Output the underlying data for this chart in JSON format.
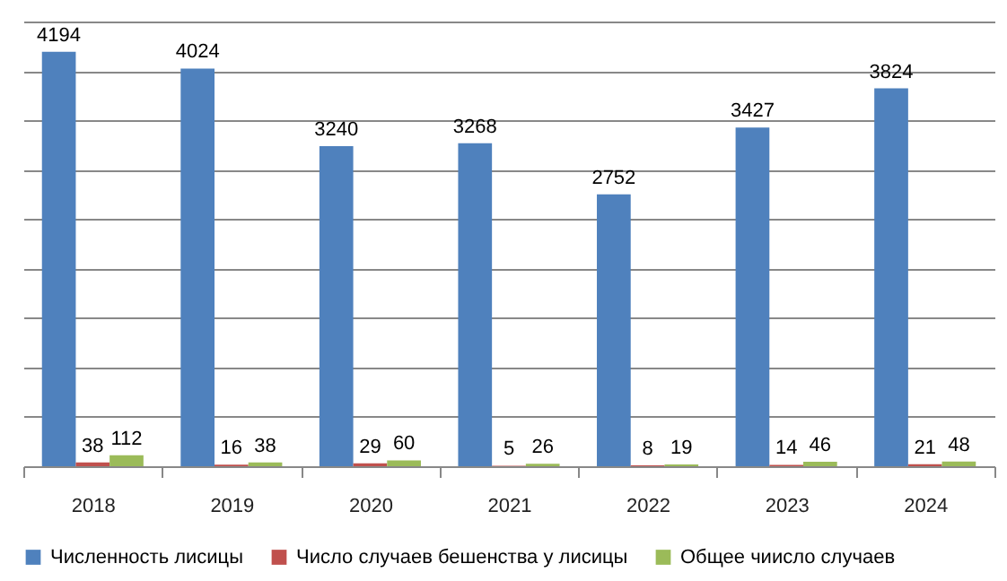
{
  "chart_data": {
    "type": "bar",
    "categories": [
      "2018",
      "2019",
      "2020",
      "2021",
      "2022",
      "2023",
      "2024"
    ],
    "series": [
      {
        "name": "Численность лисицы",
        "color": "#4f81bd",
        "values": [
          4194,
          4024,
          3240,
          3268,
          2752,
          3427,
          3824
        ]
      },
      {
        "name": "Число случаев бешенства у лисицы",
        "color": "#c0504d",
        "values": [
          38,
          16,
          29,
          5,
          8,
          14,
          21
        ]
      },
      {
        "name": "Общее чиисло случаев",
        "color": "#9bbb59",
        "values": [
          112,
          38,
          60,
          26,
          19,
          46,
          48
        ]
      }
    ],
    "ylim": [
      0,
      4500
    ],
    "yticks": [
      {
        "value": 0,
        "label": null
      },
      {
        "value": 500,
        "label": null
      },
      {
        "value": 1000,
        "label": null
      },
      {
        "value": 1500,
        "label": null
      },
      {
        "value": 2000,
        "label": null
      },
      {
        "value": 2500,
        "label": null
      },
      {
        "value": 3000,
        "label": null
      },
      {
        "value": 3500,
        "label": null
      },
      {
        "value": 4000,
        "label": null
      },
      {
        "value": 4500,
        "label": null
      }
    ],
    "tick_labels": "x",
    "grid": "y",
    "legend": "bottom",
    "data_labels": true
  }
}
